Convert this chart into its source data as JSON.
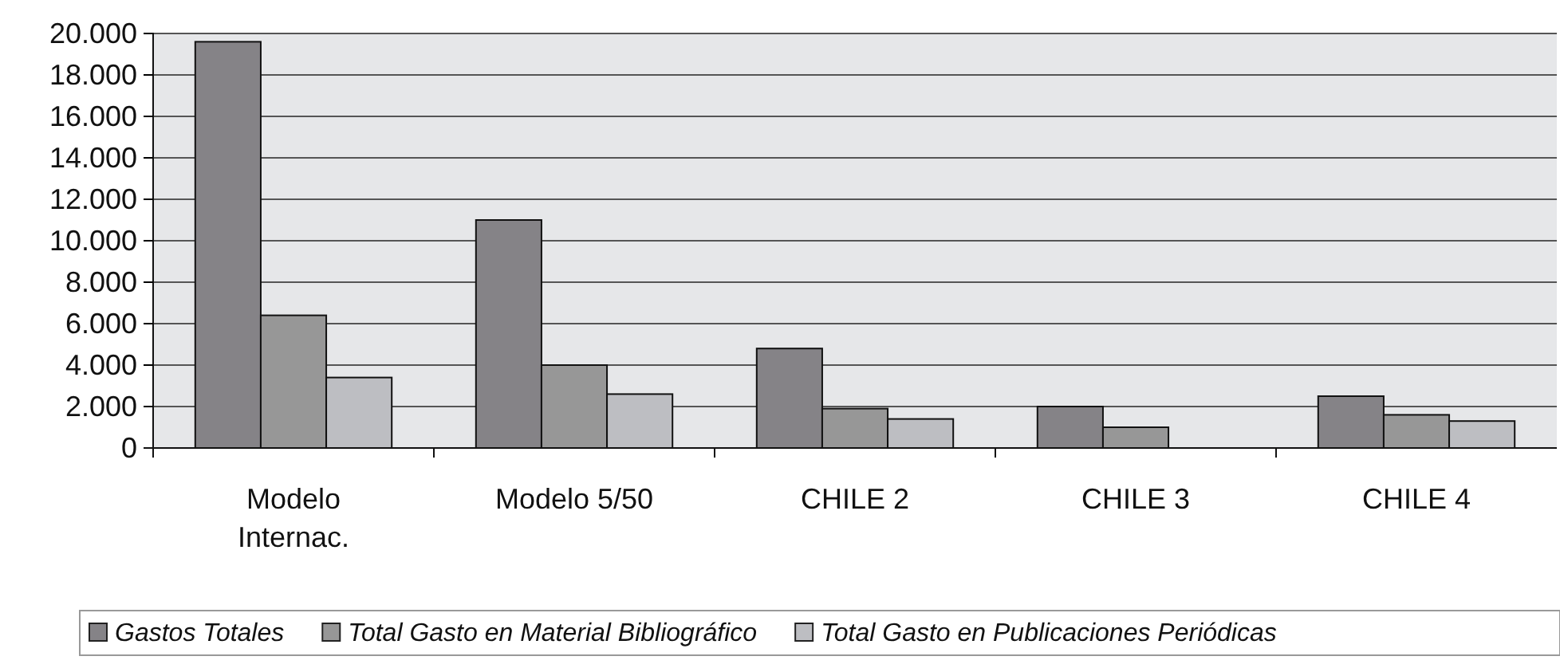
{
  "chart_data": {
    "type": "bar",
    "categories": [
      "Modelo Internac.",
      "Modelo 5/50",
      "CHILE 2",
      "CHILE 3",
      "CHILE 4"
    ],
    "series": [
      {
        "name": "Gastos Totales",
        "color": "#858387",
        "values": [
          19600,
          11000,
          4800,
          2000,
          2500
        ]
      },
      {
        "name": "Total Gasto en Material Bibliográfico",
        "color": "#979797",
        "values": [
          6400,
          4000,
          1900,
          1000,
          1600
        ]
      },
      {
        "name": "Total Gasto en Publicaciones Periódicas",
        "color": "#bdbec2",
        "values": [
          3400,
          2600,
          1400,
          null,
          1300
        ]
      }
    ],
    "ylim": [
      0,
      20000
    ],
    "yticks": [
      {
        "value": 0,
        "label": "0"
      },
      {
        "value": 2000,
        "label": "2.000"
      },
      {
        "value": 4000,
        "label": "4.000"
      },
      {
        "value": 6000,
        "label": "6.000"
      },
      {
        "value": 8000,
        "label": "8.000"
      },
      {
        "value": 10000,
        "label": "10.000"
      },
      {
        "value": 12000,
        "label": "12.000"
      },
      {
        "value": 14000,
        "label": "14.000"
      },
      {
        "value": 16000,
        "label": "16.000"
      },
      {
        "value": 18000,
        "label": "18.000"
      },
      {
        "value": 20000,
        "label": "20.000"
      }
    ],
    "grid": "y",
    "legend": "bottom"
  }
}
